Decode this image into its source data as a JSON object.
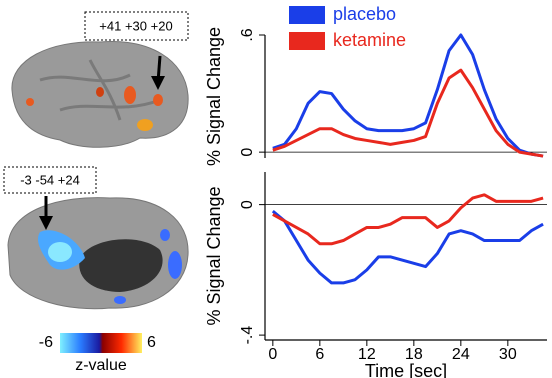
{
  "brain_panel": {
    "coords": [
      "+41 +30 +20",
      "-3 -54 +24"
    ],
    "colorbar": {
      "min": -6,
      "max": 6,
      "label": "z-value"
    }
  },
  "chart_data": [
    {
      "type": "line",
      "ylabel": "% Signal Change",
      "x": [
        0,
        1.5,
        3,
        4.5,
        6,
        7.5,
        9,
        10.5,
        12,
        13.5,
        15,
        16.5,
        18,
        19.5,
        21,
        22.5,
        24,
        25.5,
        27,
        28.5,
        30,
        31.5,
        33,
        34.5
      ],
      "xlim": [
        -1,
        35
      ],
      "ylim": [
        -0.03,
        0.6
      ],
      "yticks": [
        0,
        {
          "value": 0.6,
          "label": ".6"
        }
      ],
      "series": [
        {
          "name": "placebo",
          "color": "#1a3ee8",
          "values": [
            0.02,
            0.04,
            0.12,
            0.25,
            0.31,
            0.3,
            0.22,
            0.16,
            0.12,
            0.11,
            0.11,
            0.11,
            0.12,
            0.15,
            0.32,
            0.52,
            0.6,
            0.5,
            0.32,
            0.17,
            0.07,
            0.01,
            -0.01,
            -0.02
          ]
        },
        {
          "name": "ketamine",
          "color": "#e8281e",
          "values": [
            0.01,
            0.03,
            0.06,
            0.09,
            0.12,
            0.12,
            0.09,
            0.07,
            0.06,
            0.05,
            0.04,
            0.05,
            0.06,
            0.08,
            0.25,
            0.38,
            0.42,
            0.33,
            0.22,
            0.11,
            0.04,
            0.0,
            -0.01,
            -0.02
          ]
        }
      ],
      "legend": "upper left"
    },
    {
      "type": "line",
      "ylabel": "% Signal Change",
      "xlabel": "Time [sec]",
      "x": [
        0,
        1.5,
        3,
        4.5,
        6,
        7.5,
        9,
        10.5,
        12,
        13.5,
        15,
        16.5,
        18,
        19.5,
        21,
        22.5,
        24,
        25.5,
        27,
        28.5,
        30,
        31.5,
        33,
        34.5
      ],
      "xlim": [
        -1,
        35
      ],
      "ylim": [
        -0.415,
        0.1
      ],
      "xticks": [
        0,
        6,
        12,
        18,
        24,
        30
      ],
      "yticks": [
        0,
        {
          "value": -0.4,
          "label": "-.4"
        }
      ],
      "series": [
        {
          "color": "#1a3ee8",
          "values": [
            -0.02,
            -0.05,
            -0.11,
            -0.17,
            -0.21,
            -0.24,
            -0.24,
            -0.23,
            -0.2,
            -0.16,
            -0.16,
            -0.17,
            -0.18,
            -0.19,
            -0.15,
            -0.09,
            -0.08,
            -0.09,
            -0.11,
            -0.11,
            -0.11,
            -0.11,
            -0.08,
            -0.06
          ]
        },
        {
          "color": "#e8281e",
          "values": [
            -0.03,
            -0.05,
            -0.07,
            -0.09,
            -0.12,
            -0.12,
            -0.11,
            -0.09,
            -0.07,
            -0.07,
            -0.06,
            -0.04,
            -0.04,
            -0.04,
            -0.07,
            -0.05,
            -0.01,
            0.02,
            0.03,
            0.01,
            0.01,
            0.01,
            0.01,
            0.02
          ]
        }
      ]
    }
  ]
}
